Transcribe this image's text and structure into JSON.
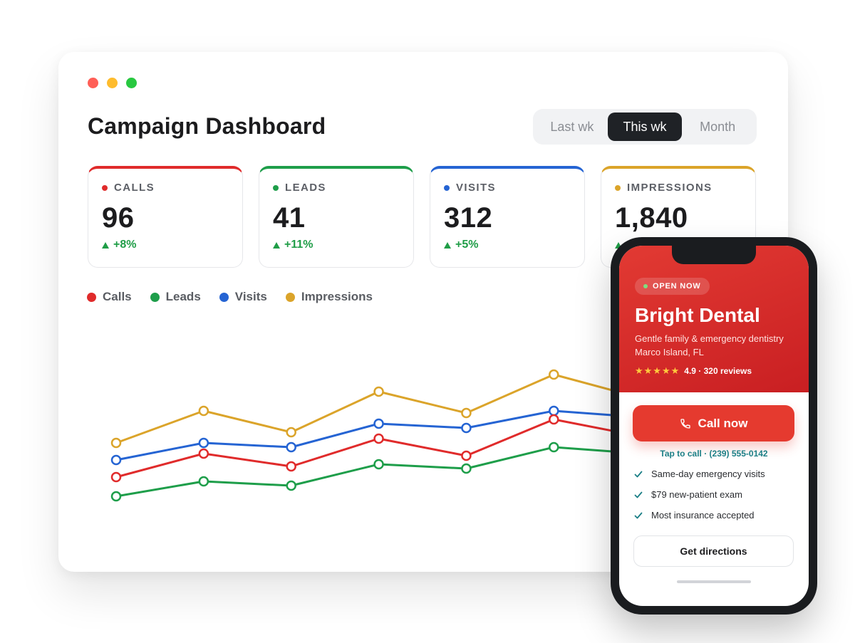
{
  "window": {
    "title": "Campaign Dashboard",
    "tabs": [
      {
        "label": "Last wk",
        "active": false
      },
      {
        "label": "This wk",
        "active": true
      },
      {
        "label": "Month",
        "active": false
      }
    ]
  },
  "metrics": [
    {
      "label": "CALLS",
      "value": "96",
      "delta": "+8%",
      "color": "#e02b2b"
    },
    {
      "label": "LEADS",
      "value": "41",
      "delta": "+11%",
      "color": "#1e9e4a"
    },
    {
      "label": "VISITS",
      "value": "312",
      "delta": "+5%",
      "color": "#2564d3"
    },
    {
      "label": "IMPRESSIONS",
      "value": "1,840",
      "delta": "+",
      "color": "#dba42a"
    }
  ],
  "legend": [
    {
      "label": "Calls",
      "color": "#e02b2b"
    },
    {
      "label": "Leads",
      "color": "#1e9e4a"
    },
    {
      "label": "Visits",
      "color": "#2564d3"
    },
    {
      "label": "Impressions",
      "color": "#dba42a"
    }
  ],
  "chart_data": {
    "type": "line",
    "x": [
      1,
      2,
      3,
      4,
      5,
      6,
      7,
      8
    ],
    "ylim": [
      0,
      100
    ],
    "grid": false,
    "series": [
      {
        "name": "Impressions",
        "color": "#dba42a",
        "values": [
          47,
          62,
          52,
          71,
          61,
          79,
          68,
          77
        ]
      },
      {
        "name": "Visits",
        "color": "#2564d3",
        "values": [
          39,
          47,
          45,
          56,
          54,
          62,
          59,
          66
        ]
      },
      {
        "name": "Calls",
        "color": "#e02b2b",
        "values": [
          31,
          42,
          36,
          49,
          41,
          58,
          50,
          56
        ]
      },
      {
        "name": "Leads",
        "color": "#1e9e4a",
        "values": [
          22,
          29,
          27,
          37,
          35,
          45,
          42,
          47
        ]
      }
    ]
  },
  "phone": {
    "badge": "OPEN NOW",
    "name": "Bright Dental",
    "description": "Gentle family & emergency dentistry",
    "location": "Marco Island, FL",
    "stars": "★★★★★",
    "rating_text": "4.9 · 320 reviews",
    "call_label": "Call now",
    "tap_text": "Tap to call · (239) 555-0142",
    "features": [
      "Same-day emergency visits",
      "$79 new-patient exam",
      "Most insurance accepted"
    ],
    "directions_label": "Get directions"
  }
}
